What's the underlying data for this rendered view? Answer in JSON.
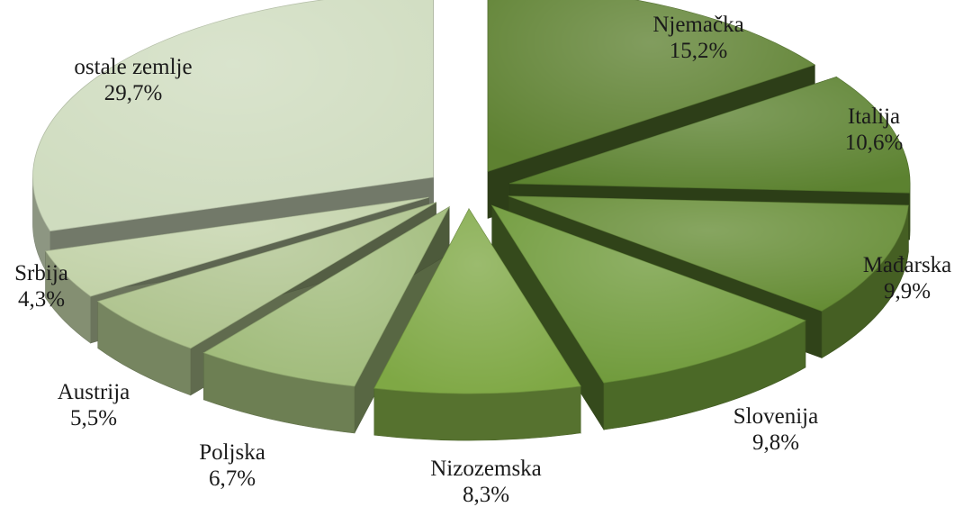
{
  "chart_data": {
    "type": "pie",
    "title": "",
    "style": "3d-exploded",
    "legend": "none",
    "slices": [
      {
        "name": "Njemačka",
        "value": 15.2,
        "label": "15,2%",
        "color": "#5e8131"
      },
      {
        "name": "Italija",
        "value": 10.6,
        "label": "10,6%",
        "color": "#5c8230"
      },
      {
        "name": "Mađarska",
        "value": 9.9,
        "label": "9,9%",
        "color": "#658c34"
      },
      {
        "name": "Slovenija",
        "value": 9.8,
        "label": "9,8%",
        "color": "#6f9a3a"
      },
      {
        "name": "Nizozemska",
        "value": 8.3,
        "label": "8,3%",
        "color": "#7fa845"
      },
      {
        "name": "Poljska",
        "value": 6.7,
        "label": "6,7%",
        "color": "#a0bb7a"
      },
      {
        "name": "Austrija",
        "value": 5.5,
        "label": "5,5%",
        "color": "#aec38d"
      },
      {
        "name": "Srbija",
        "value": 4.3,
        "label": "4,3%",
        "color": "#c2d2a8"
      },
      {
        "name": "ostale zemlje",
        "value": 29.7,
        "label": "29,7%",
        "color": "#cfdcbf"
      }
    ]
  }
}
